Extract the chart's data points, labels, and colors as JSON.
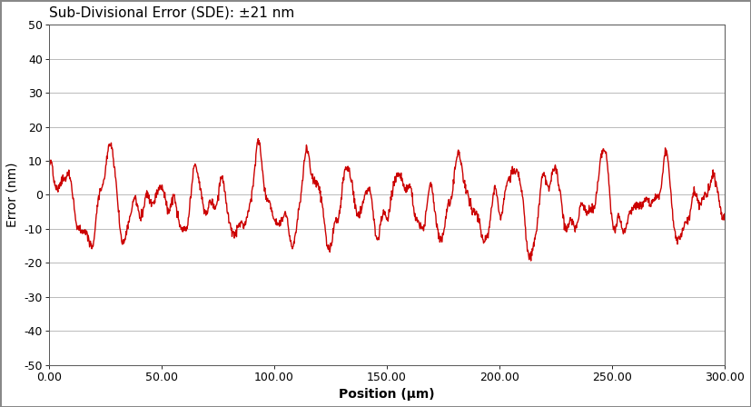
{
  "title": "Sub-Divisional Error (SDE): ±21 nm",
  "xlabel": "Position (μm)",
  "ylabel": "Error (nm)",
  "xlim": [
    0,
    300
  ],
  "ylim": [
    -50,
    50
  ],
  "xticks": [
    0,
    50,
    100,
    150,
    200,
    250,
    300
  ],
  "yticks": [
    -50,
    -40,
    -30,
    -20,
    -10,
    0,
    10,
    20,
    30,
    40,
    50
  ],
  "xtick_labels": [
    "0.00",
    "50.00",
    "100.00",
    "150.00",
    "200.00",
    "250.00",
    "300.00"
  ],
  "ytick_labels": [
    "-50",
    "-40",
    "-30",
    "-20",
    "-10",
    "0",
    "10",
    "20",
    "30",
    "40",
    "50"
  ],
  "line_color": "#cc0000",
  "line_width": 1.0,
  "background_color": "#ffffff",
  "plot_bg_color": "#ffffff",
  "grid_color": "#b0b0b0",
  "title_fontsize": 11,
  "axis_label_fontsize": 10,
  "tick_fontsize": 9,
  "outer_border_color": "#888888",
  "figwidth": 8.27,
  "figheight": 4.48,
  "dpi": 100
}
